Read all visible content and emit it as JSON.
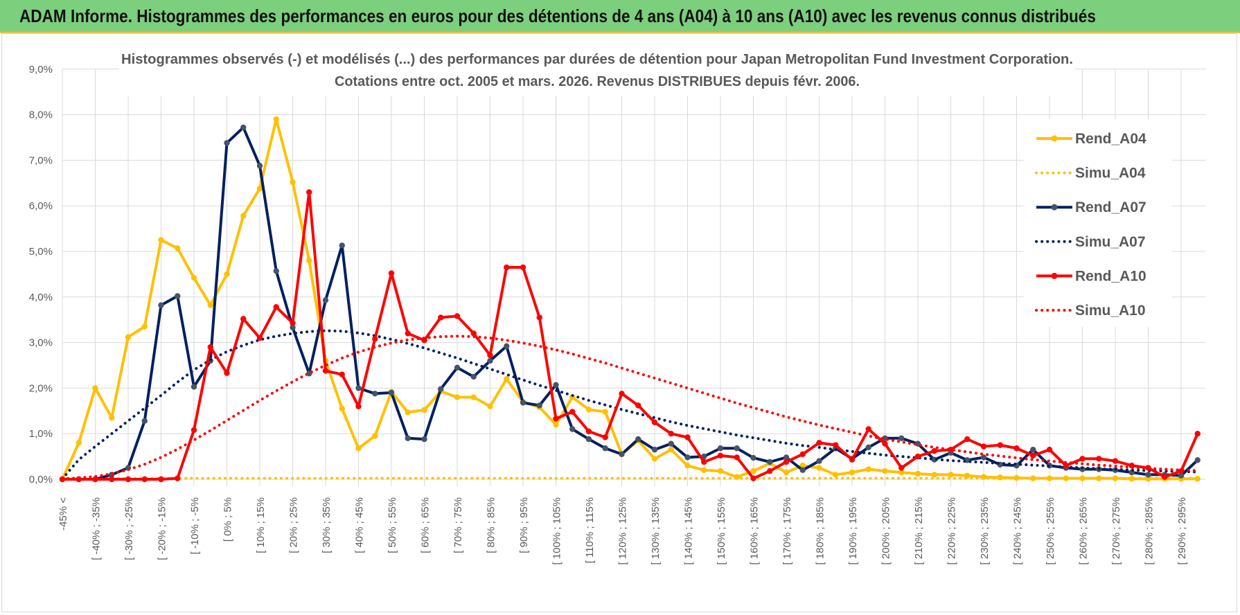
{
  "page": {
    "banner_title": "ADAM Informe. Histogrammes des performances en euros pour des détentions de 4 ans (A04) à 10 ans (A10) avec les revenus connus distribués"
  },
  "chart_data": {
    "type": "line",
    "title": "Histogrammes observés (-) et modélisés (...) des performances par durées de détention pour Japan Metropolitan Fund Investment Corporation.",
    "subtitle": "Cotations entre oct. 2005 et mars. 2026. Revenus DISTRIBUES depuis févr. 2006.",
    "xlabel": "",
    "ylabel": "",
    "ylim": [
      0,
      9
    ],
    "y_ticks": [
      "0,0%",
      "1,0%",
      "2,0%",
      "3,0%",
      "4,0%",
      "5,0%",
      "6,0%",
      "7,0%",
      "8,0%",
      "9,0%"
    ],
    "x_tick_labels": [
      "-45% <",
      "[ -40% ; -35%",
      "[ -30% ; -25%",
      "[ -20% ; -15%",
      "[ -10% ; -5%",
      "[ 0% ; 5%",
      "[ 10% ; 15%",
      "[ 20% ; 25%",
      "[ 30% ; 35%",
      "[ 40% ; 45%",
      "[ 50% ; 55%",
      "[ 60% ; 65%",
      "[ 70% ; 75%",
      "[ 80% ; 85%",
      "[ 90% ; 95%",
      "[ 100% ; 105%",
      "[ 110% ; 115%",
      "[ 120% ; 125%",
      "[ 130% ; 135%",
      "[ 140% ; 145%",
      "[ 150% ; 155%",
      "[ 160% ; 165%",
      "[ 170% ; 175%",
      "[ 180% ; 185%",
      "[ 190% ; 195%",
      "[ 200% ; 205%",
      "[ 210% ; 215%",
      "[ 220% ; 225%",
      "[ 230% ; 235%",
      "[ 240% ; 245%",
      "[ 250% ; 255%",
      "[ 260% ; 265%",
      "[ 270% ; 275%",
      "[ 280% ; 285%",
      "[ 290% ; 295%"
    ],
    "legend_position": "right",
    "grid": true,
    "series": [
      {
        "name": "Rend_A04",
        "style": "solid",
        "color": "#ffc000",
        "values": [
          0,
          0.8,
          2.0,
          1.35,
          3.12,
          3.35,
          5.25,
          5.07,
          4.42,
          3.82,
          4.5,
          5.78,
          6.38,
          7.9,
          6.52,
          4.8,
          2.6,
          1.55,
          0.68,
          0.95,
          1.92,
          1.47,
          1.52,
          1.93,
          1.8,
          1.8,
          1.6,
          2.2,
          1.7,
          1.58,
          1.2,
          1.8,
          1.53,
          1.48,
          0.55,
          0.85,
          0.45,
          0.65,
          0.3,
          0.2,
          0.18,
          0.05,
          0.18,
          0.35,
          0.15,
          0.3,
          0.25,
          0.1,
          0.15,
          0.22,
          0.18,
          0.15,
          0.12,
          0.1,
          0.1,
          0.08,
          0.05,
          0.04,
          0.03,
          0.02,
          0.02,
          0.02,
          0.02,
          0.02,
          0.02,
          0.01,
          0.01,
          0.01,
          0.01,
          0.01
        ]
      },
      {
        "name": "Simu_A04",
        "style": "dotted",
        "color": "#ffc000",
        "values": [
          0.02,
          0.02,
          0.02,
          0.02,
          0.02,
          0.02,
          0.02,
          0.02,
          0.02,
          0.02,
          0.02,
          0.02,
          0.02,
          0.02,
          0.02,
          0.02,
          0.02,
          0.02,
          0.02,
          0.02,
          0.02,
          0.02,
          0.02,
          0.02,
          0.02,
          0.02,
          0.02,
          0.02,
          0.02,
          0.02,
          0.02,
          0.02,
          0.02,
          0.02,
          0.02,
          0.02,
          0.02,
          0.02,
          0.02,
          0.02,
          0.02,
          0.02,
          0.02,
          0.02,
          0.02,
          0.02,
          0.02,
          0.02,
          0.02,
          0.02,
          0.02,
          0.02,
          0.02,
          0.02,
          0.02,
          0.02,
          0.02,
          0.02,
          0.02,
          0.02,
          0.02,
          0.02,
          0.02,
          0.02,
          0.02,
          0.02,
          0.02,
          0.02,
          0.02,
          0.02
        ]
      },
      {
        "name": "Rend_A07",
        "style": "solid",
        "color": "#002060",
        "values": [
          0,
          0,
          0,
          0.1,
          0.25,
          1.28,
          3.82,
          4.02,
          2.03,
          2.6,
          7.38,
          7.72,
          6.88,
          4.57,
          3.33,
          2.32,
          3.93,
          5.13,
          2.0,
          1.88,
          1.9,
          0.9,
          0.88,
          1.98,
          2.45,
          2.25,
          2.6,
          2.92,
          1.68,
          1.62,
          2.07,
          1.1,
          0.88,
          0.68,
          0.55,
          0.88,
          0.65,
          0.78,
          0.48,
          0.5,
          0.68,
          0.68,
          0.47,
          0.38,
          0.48,
          0.2,
          0.4,
          0.68,
          0.45,
          0.7,
          0.9,
          0.9,
          0.78,
          0.43,
          0.58,
          0.42,
          0.48,
          0.32,
          0.3,
          0.65,
          0.3,
          0.25,
          0.22,
          0.22,
          0.2,
          0.15,
          0.1,
          0.1,
          0.08,
          0.42
        ]
      },
      {
        "name": "Simu_A07",
        "style": "dotted",
        "color": "#002060",
        "values": [
          0.01,
          0.43,
          0.72,
          1.0,
          1.28,
          1.56,
          1.84,
          2.13,
          2.4,
          2.62,
          2.8,
          2.94,
          3.06,
          3.14,
          3.2,
          3.24,
          3.26,
          3.25,
          3.21,
          3.15,
          3.07,
          2.98,
          2.88,
          2.77,
          2.66,
          2.54,
          2.42,
          2.3,
          2.18,
          2.06,
          1.95,
          1.84,
          1.73,
          1.63,
          1.53,
          1.44,
          1.35,
          1.26,
          1.18,
          1.11,
          1.04,
          0.97,
          0.91,
          0.85,
          0.79,
          0.74,
          0.7,
          0.65,
          0.61,
          0.57,
          0.53,
          0.5,
          0.47,
          0.44,
          0.41,
          0.39,
          0.37,
          0.35,
          0.33,
          0.31,
          0.29,
          0.27,
          0.25,
          0.23,
          0.22,
          0.2,
          0.19,
          0.18,
          0.17,
          0.16
        ]
      },
      {
        "name": "Rend_A10",
        "style": "solid",
        "color": "#ff0000",
        "values": [
          0,
          0,
          0,
          0,
          0,
          0,
          0,
          0.02,
          1.08,
          2.9,
          2.33,
          3.52,
          3.1,
          3.78,
          3.43,
          6.3,
          2.38,
          2.3,
          1.6,
          3.08,
          4.52,
          3.2,
          3.05,
          3.55,
          3.58,
          3.2,
          2.72,
          4.65,
          4.65,
          3.55,
          1.33,
          1.48,
          1.05,
          0.92,
          1.88,
          1.62,
          1.25,
          1.0,
          0.92,
          0.38,
          0.52,
          0.48,
          0.02,
          0.18,
          0.38,
          0.55,
          0.8,
          0.75,
          0.43,
          1.1,
          0.78,
          0.25,
          0.5,
          0.62,
          0.65,
          0.88,
          0.72,
          0.75,
          0.68,
          0.52,
          0.65,
          0.3,
          0.45,
          0.45,
          0.4,
          0.3,
          0.25,
          0.05,
          0.18,
          1.0
        ]
      },
      {
        "name": "Simu_A10",
        "style": "dotted",
        "color": "#ff0000",
        "values": [
          0.01,
          0.03,
          0.06,
          0.12,
          0.21,
          0.33,
          0.48,
          0.66,
          0.86,
          1.07,
          1.29,
          1.51,
          1.73,
          1.94,
          2.14,
          2.33,
          2.5,
          2.66,
          2.79,
          2.9,
          2.99,
          3.06,
          3.1,
          3.13,
          3.14,
          3.13,
          3.1,
          3.05,
          2.99,
          2.92,
          2.84,
          2.75,
          2.65,
          2.55,
          2.44,
          2.33,
          2.22,
          2.11,
          2.0,
          1.89,
          1.78,
          1.67,
          1.57,
          1.47,
          1.37,
          1.28,
          1.19,
          1.11,
          1.03,
          0.95,
          0.88,
          0.82,
          0.76,
          0.7,
          0.65,
          0.6,
          0.55,
          0.51,
          0.47,
          0.43,
          0.4,
          0.37,
          0.34,
          0.31,
          0.29,
          0.26,
          0.24,
          0.22,
          0.2,
          0.19
        ]
      }
    ]
  }
}
